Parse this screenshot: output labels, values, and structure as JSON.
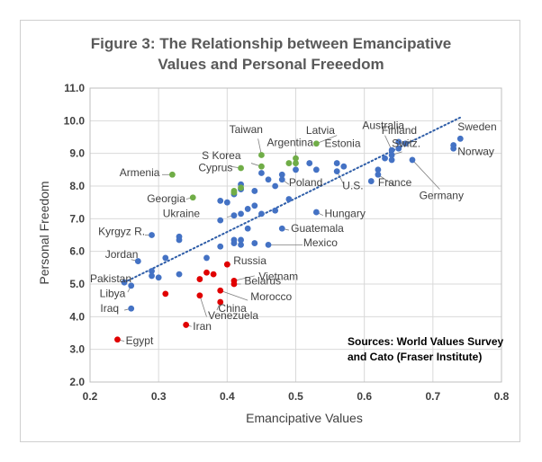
{
  "chart_data": {
    "type": "scatter",
    "title_lines": [
      "Figure 3: The Relationship between Emancipative",
      "Values and Personal Freeedom"
    ],
    "xlabel": "Emancipative Values",
    "ylabel": "Personal Freedom",
    "xlim": [
      0.2,
      0.8
    ],
    "ylim": [
      2.0,
      11.0
    ],
    "x_ticks": [
      "0.2",
      "0.3",
      "0.4",
      "0.5",
      "0.6",
      "0.7",
      "0.8"
    ],
    "y_ticks": [
      "2.0",
      "3.0",
      "4.0",
      "5.0",
      "6.0",
      "7.0",
      "8.0",
      "9.0",
      "10.0",
      "11.0"
    ],
    "grid": true,
    "trendline": {
      "style": "dotted",
      "color": "#2e5da7",
      "from": [
        0.25,
        5.05
      ],
      "to": [
        0.74,
        10.1
      ]
    },
    "sources": [
      "Sources: World Values Survey",
      "and Cato (Fraser Institute)"
    ],
    "colors": {
      "blue": "#4472c4",
      "green": "#70ad47",
      "red": "#e00000",
      "grid": "#d9d9d9",
      "title": "#595959"
    },
    "series": [
      {
        "color": "blue",
        "points": [
          [
            0.74,
            9.45
          ],
          [
            0.73,
            9.25
          ],
          [
            0.73,
            9.15
          ],
          [
            0.65,
            9.35
          ],
          [
            0.66,
            9.3
          ],
          [
            0.65,
            9.15
          ],
          [
            0.64,
            9.1
          ],
          [
            0.64,
            8.95
          ],
          [
            0.63,
            8.85
          ],
          [
            0.64,
            8.8
          ],
          [
            0.67,
            8.8
          ],
          [
            0.62,
            8.5
          ],
          [
            0.62,
            8.35
          ],
          [
            0.61,
            8.15
          ],
          [
            0.57,
            8.6
          ],
          [
            0.56,
            8.7
          ],
          [
            0.56,
            8.45
          ],
          [
            0.53,
            8.5
          ],
          [
            0.52,
            8.7
          ],
          [
            0.5,
            8.5
          ],
          [
            0.48,
            8.35
          ],
          [
            0.48,
            8.2
          ],
          [
            0.47,
            8.0
          ],
          [
            0.46,
            8.2
          ],
          [
            0.45,
            8.4
          ],
          [
            0.44,
            7.85
          ],
          [
            0.42,
            8.05
          ],
          [
            0.42,
            7.9
          ],
          [
            0.41,
            7.75
          ],
          [
            0.49,
            7.6
          ],
          [
            0.47,
            7.25
          ],
          [
            0.45,
            7.15
          ],
          [
            0.44,
            7.4
          ],
          [
            0.43,
            7.3
          ],
          [
            0.42,
            7.15
          ],
          [
            0.41,
            7.1
          ],
          [
            0.39,
            6.95
          ],
          [
            0.53,
            7.2
          ],
          [
            0.48,
            6.7
          ],
          [
            0.43,
            6.7
          ],
          [
            0.41,
            6.35
          ],
          [
            0.42,
            6.35
          ],
          [
            0.41,
            6.25
          ],
          [
            0.42,
            6.2
          ],
          [
            0.44,
            6.25
          ],
          [
            0.46,
            6.2
          ],
          [
            0.39,
            6.15
          ],
          [
            0.37,
            5.8
          ],
          [
            0.33,
            6.45
          ],
          [
            0.33,
            6.35
          ],
          [
            0.29,
            6.5
          ],
          [
            0.31,
            5.8
          ],
          [
            0.27,
            5.7
          ],
          [
            0.29,
            5.4
          ],
          [
            0.29,
            5.25
          ],
          [
            0.3,
            5.2
          ],
          [
            0.33,
            5.3
          ],
          [
            0.25,
            5.05
          ],
          [
            0.26,
            4.95
          ],
          [
            0.26,
            4.25
          ],
          [
            0.39,
            7.55
          ],
          [
            0.4,
            7.5
          ]
        ]
      },
      {
        "color": "green",
        "points": [
          [
            0.32,
            8.35
          ],
          [
            0.35,
            7.65
          ],
          [
            0.41,
            7.85
          ],
          [
            0.41,
            7.8
          ],
          [
            0.42,
            7.95
          ],
          [
            0.42,
            8.55
          ],
          [
            0.45,
            8.95
          ],
          [
            0.45,
            8.6
          ],
          [
            0.49,
            8.7
          ],
          [
            0.5,
            8.85
          ],
          [
            0.5,
            8.7
          ],
          [
            0.53,
            9.3
          ]
        ]
      },
      {
        "color": "red",
        "points": [
          [
            0.24,
            3.3
          ],
          [
            0.34,
            3.75
          ],
          [
            0.31,
            4.7
          ],
          [
            0.36,
            4.65
          ],
          [
            0.39,
            4.45
          ],
          [
            0.39,
            4.8
          ],
          [
            0.41,
            5.0
          ],
          [
            0.41,
            5.1
          ],
          [
            0.37,
            5.35
          ],
          [
            0.38,
            5.3
          ],
          [
            0.4,
            5.6
          ],
          [
            0.36,
            5.15
          ]
        ]
      }
    ],
    "point_labels": [
      {
        "text": "Sweden",
        "at": [
          0.736,
          9.7
        ]
      },
      {
        "text": "Norway",
        "at": [
          0.736,
          8.95
        ]
      },
      {
        "text": "Finland",
        "at": [
          0.625,
          9.6
        ]
      },
      {
        "text": "Switz.",
        "at": [
          0.64,
          9.2
        ]
      },
      {
        "text": "Australia",
        "at": [
          0.597,
          9.75
        ]
      },
      {
        "text": "Estonia",
        "at": [
          0.542,
          9.2
        ]
      },
      {
        "text": "Latvia",
        "at": [
          0.515,
          9.6
        ]
      },
      {
        "text": "Taiwan",
        "at": [
          0.403,
          9.63
        ]
      },
      {
        "text": "Argentina",
        "at": [
          0.458,
          9.23
        ]
      },
      {
        "text": "S Korea",
        "at": [
          0.363,
          8.83
        ]
      },
      {
        "text": "Cyprus",
        "at": [
          0.358,
          8.45
        ]
      },
      {
        "text": "Armenia",
        "at": [
          0.243,
          8.3
        ]
      },
      {
        "text": "Poland",
        "at": [
          0.49,
          8.0
        ]
      },
      {
        "text": "U.S.",
        "at": [
          0.568,
          7.9
        ]
      },
      {
        "text": "France",
        "at": [
          0.62,
          8.0
        ]
      },
      {
        "text": "Germany",
        "at": [
          0.68,
          7.6
        ]
      },
      {
        "text": "Georgia",
        "at": [
          0.283,
          7.5
        ]
      },
      {
        "text": "Ukraine",
        "at": [
          0.306,
          7.05
        ]
      },
      {
        "text": "Hungary",
        "at": [
          0.542,
          7.05
        ]
      },
      {
        "text": "Guatemala",
        "at": [
          0.493,
          6.6
        ]
      },
      {
        "text": "Kyrgyz R.",
        "at": [
          0.212,
          6.5
        ]
      },
      {
        "text": "Mexico",
        "at": [
          0.511,
          6.15
        ]
      },
      {
        "text": "Jordan",
        "at": [
          0.222,
          5.8
        ]
      },
      {
        "text": "Russia",
        "at": [
          0.409,
          5.6
        ]
      },
      {
        "text": "Pakistan",
        "at": [
          0.2,
          5.05
        ]
      },
      {
        "text": "Vietnam",
        "at": [
          0.446,
          5.13
        ]
      },
      {
        "text": "Belarus",
        "at": [
          0.425,
          4.98
        ]
      },
      {
        "text": "Libya",
        "at": [
          0.214,
          4.6
        ]
      },
      {
        "text": "Morocco",
        "at": [
          0.434,
          4.5
        ]
      },
      {
        "text": "Iraq",
        "at": [
          0.215,
          4.15
        ]
      },
      {
        "text": "China",
        "at": [
          0.387,
          4.15
        ]
      },
      {
        "text": "Venezuela",
        "at": [
          0.372,
          3.92
        ]
      },
      {
        "text": "Iran",
        "at": [
          0.35,
          3.6
        ]
      },
      {
        "text": "Egypt",
        "at": [
          0.252,
          3.15
        ]
      }
    ],
    "leader_lines": [
      [
        [
          0.66,
          9.3
        ],
        [
          0.675,
          9.45
        ]
      ],
      [
        [
          0.64,
          8.95
        ],
        [
          0.655,
          9.05
        ]
      ],
      [
        [
          0.64,
          9.1
        ],
        [
          0.63,
          9.55
        ]
      ],
      [
        [
          0.67,
          8.8
        ],
        [
          0.71,
          7.9
        ]
      ],
      [
        [
          0.62,
          8.35
        ],
        [
          0.645,
          8.0
        ]
      ],
      [
        [
          0.53,
          9.3
        ],
        [
          0.56,
          9.55
        ]
      ],
      [
        [
          0.45,
          8.95
        ],
        [
          0.445,
          9.45
        ]
      ],
      [
        [
          0.5,
          8.85
        ],
        [
          0.5,
          9.05
        ]
      ],
      [
        [
          0.45,
          8.6
        ],
        [
          0.435,
          8.7
        ]
      ],
      [
        [
          0.42,
          8.55
        ],
        [
          0.405,
          8.6
        ]
      ],
      [
        [
          0.32,
          8.35
        ],
        [
          0.305,
          8.35
        ]
      ],
      [
        [
          0.48,
          8.2
        ],
        [
          0.49,
          8.05
        ]
      ],
      [
        [
          0.56,
          8.45
        ],
        [
          0.57,
          8.05
        ]
      ],
      [
        [
          0.35,
          7.65
        ],
        [
          0.34,
          7.6
        ]
      ],
      [
        [
          0.41,
          7.1
        ],
        [
          0.4,
          7.05
        ]
      ],
      [
        [
          0.53,
          7.2
        ],
        [
          0.54,
          7.1
        ]
      ],
      [
        [
          0.48,
          6.7
        ],
        [
          0.49,
          6.65
        ]
      ],
      [
        [
          0.29,
          6.5
        ],
        [
          0.28,
          6.5
        ]
      ],
      [
        [
          0.46,
          6.2
        ],
        [
          0.51,
          6.2
        ]
      ],
      [
        [
          0.27,
          5.7
        ],
        [
          0.26,
          5.75
        ]
      ],
      [
        [
          0.4,
          5.6
        ],
        [
          0.405,
          5.6
        ]
      ],
      [
        [
          0.25,
          5.05
        ],
        [
          0.245,
          5.05
        ]
      ],
      [
        [
          0.41,
          5.1
        ],
        [
          0.44,
          5.25
        ]
      ],
      [
        [
          0.41,
          5.0
        ],
        [
          0.42,
          5.0
        ]
      ],
      [
        [
          0.26,
          4.95
        ],
        [
          0.255,
          4.75
        ]
      ],
      [
        [
          0.39,
          4.8
        ],
        [
          0.43,
          4.5
        ]
      ],
      [
        [
          0.26,
          4.25
        ],
        [
          0.25,
          4.2
        ]
      ],
      [
        [
          0.39,
          4.45
        ],
        [
          0.385,
          4.2
        ]
      ],
      [
        [
          0.36,
          4.65
        ],
        [
          0.37,
          4.0
        ]
      ],
      [
        [
          0.34,
          3.75
        ],
        [
          0.348,
          3.7
        ]
      ],
      [
        [
          0.24,
          3.3
        ],
        [
          0.25,
          3.25
        ]
      ]
    ]
  }
}
